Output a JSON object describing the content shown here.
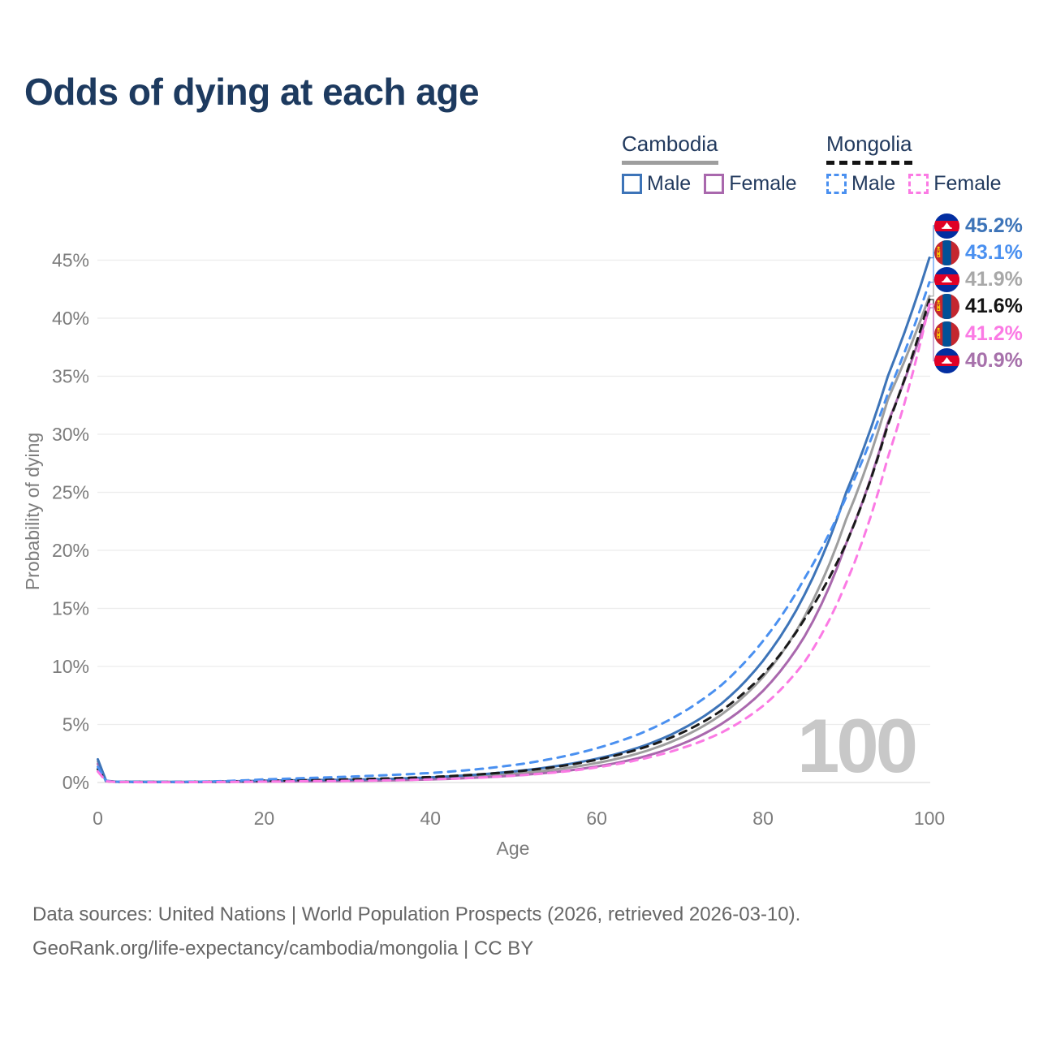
{
  "title": "Odds of dying at each age",
  "legend": {
    "groups": [
      {
        "name": "Cambodia",
        "line_style": "solid",
        "underline_color": "#9e9e9e",
        "items": [
          {
            "label": "Male",
            "color": "#3d74b8"
          },
          {
            "label": "Female",
            "color": "#a968ad"
          }
        ]
      },
      {
        "name": "Mongolia",
        "line_style": "dashed",
        "underline_color": "#141414",
        "items": [
          {
            "label": "Male",
            "color": "#4a90f0"
          },
          {
            "label": "Female",
            "color": "#fb7ae4"
          }
        ]
      }
    ]
  },
  "age_counter": "100",
  "footer": {
    "line1": "Data sources: United Nations | World Population Prospects (2026, retrieved 2026-03-10).",
    "line2": "GeoRank.org/life-expectancy/cambodia/mongolia | CC BY"
  },
  "flags": {
    "cambodia": {
      "blue": "#032ea1",
      "red": "#e00025",
      "white": "#ffffff"
    },
    "mongolia": {
      "red": "#c4272f",
      "blue": "#015197",
      "yellow": "#f9cf02"
    }
  },
  "chart_data": {
    "type": "line",
    "title": "Odds of dying at each age",
    "xlabel": "Age",
    "ylabel": "Probability of dying",
    "xlim": [
      0,
      100
    ],
    "ylim_percent": [
      0,
      47
    ],
    "xticks": [
      0,
      20,
      40,
      60,
      80,
      100
    ],
    "yticks_percent": [
      0,
      5,
      10,
      15,
      20,
      25,
      30,
      35,
      40,
      45
    ],
    "grid": true,
    "ages": [
      0,
      1,
      2,
      5,
      10,
      15,
      20,
      25,
      30,
      35,
      40,
      45,
      50,
      55,
      60,
      65,
      70,
      75,
      80,
      85,
      90,
      95,
      100
    ],
    "series": [
      {
        "name": "Cambodia Male",
        "slug": "cambodia-male",
        "country": "cambodia",
        "sex": "male",
        "style": "solid",
        "color": "#3d74b8",
        "label_color": "#3d74b8",
        "end_value_percent": 45.2,
        "end_label": "45.2%",
        "values_percent": [
          2.0,
          0.15,
          0.08,
          0.06,
          0.05,
          0.09,
          0.16,
          0.2,
          0.24,
          0.31,
          0.44,
          0.65,
          0.95,
          1.4,
          2.05,
          3.0,
          4.5,
          6.8,
          10.5,
          16.2,
          25.0,
          35.0,
          45.2
        ]
      },
      {
        "name": "Mongolia Male",
        "slug": "mongolia-male",
        "country": "mongolia",
        "sex": "male",
        "style": "dashed",
        "color": "#4a90f0",
        "label_color": "#4a90f0",
        "end_value_percent": 43.1,
        "end_label": "43.1%",
        "values_percent": [
          1.35,
          0.12,
          0.07,
          0.05,
          0.05,
          0.12,
          0.27,
          0.38,
          0.5,
          0.64,
          0.82,
          1.1,
          1.5,
          2.1,
          2.95,
          4.15,
          5.9,
          8.4,
          12.2,
          17.6,
          24.6,
          33.5,
          43.1
        ]
      },
      {
        "name": "Cambodia Both sexes",
        "slug": "cambodia-both-sexes",
        "country": "cambodia",
        "sex": "both",
        "style": "solid",
        "color": "#9e9e9e",
        "label_color": "#a8a8a8",
        "end_value_percent": 41.9,
        "end_label": "41.9%",
        "values_percent": [
          1.8,
          0.13,
          0.07,
          0.05,
          0.04,
          0.07,
          0.12,
          0.15,
          0.19,
          0.25,
          0.34,
          0.51,
          0.75,
          1.12,
          1.68,
          2.51,
          3.82,
          5.86,
          9.1,
          14.3,
          22.7,
          33.0,
          41.9
        ]
      },
      {
        "name": "Mongolia Both sexes",
        "slug": "mongolia-both-sexes",
        "country": "mongolia",
        "sex": "both",
        "style": "dashed",
        "color": "#1a1a1a",
        "label_color": "#141414",
        "end_value_percent": 41.6,
        "end_label": "41.6%",
        "values_percent": [
          1.15,
          0.11,
          0.06,
          0.04,
          0.04,
          0.08,
          0.15,
          0.2,
          0.27,
          0.35,
          0.47,
          0.66,
          0.93,
          1.34,
          1.96,
          2.86,
          4.2,
          6.2,
          9.3,
          14.1,
          20.6,
          30.8,
          41.6
        ]
      },
      {
        "name": "Mongolia Female",
        "slug": "mongolia-female",
        "country": "mongolia",
        "sex": "female",
        "style": "dashed",
        "color": "#fb7ae4",
        "label_color": "#fb7ae4",
        "end_value_percent": 41.2,
        "end_label": "41.2%",
        "values_percent": [
          0.95,
          0.1,
          0.05,
          0.03,
          0.03,
          0.05,
          0.08,
          0.11,
          0.14,
          0.19,
          0.27,
          0.39,
          0.58,
          0.86,
          1.3,
          1.95,
          2.9,
          4.3,
          6.6,
          10.4,
          17.2,
          28.0,
          41.2
        ]
      },
      {
        "name": "Cambodia Female",
        "slug": "cambodia-female",
        "country": "cambodia",
        "sex": "female",
        "style": "solid",
        "color": "#a968ad",
        "label_color": "#a771ab",
        "end_value_percent": 40.9,
        "end_label": "40.9%",
        "values_percent": [
          1.6,
          0.12,
          0.06,
          0.04,
          0.03,
          0.05,
          0.08,
          0.1,
          0.13,
          0.18,
          0.26,
          0.4,
          0.6,
          0.9,
          1.38,
          2.1,
          3.25,
          5.05,
          7.9,
          12.6,
          20.6,
          31.0,
          40.9
        ]
      }
    ]
  }
}
